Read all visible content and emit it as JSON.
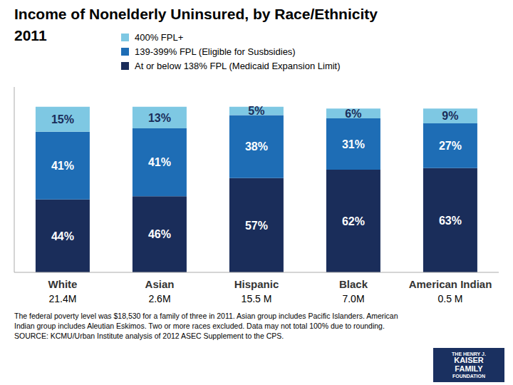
{
  "chart_data": {
    "type": "bar",
    "title": "Income of Nonelderly Uninsured, by Race/Ethnicity\n2011",
    "categories": [
      "White",
      "Asian",
      "Hispanic",
      "Black",
      "American Indian"
    ],
    "series": [
      {
        "name": "At or below 138% FPL (Medicaid Expansion Limit)",
        "color": "#1a2d5a",
        "values": [
          44,
          46,
          57,
          62,
          63
        ],
        "value_labels": [
          "44%",
          "46%",
          "57%",
          "62%",
          "63%"
        ]
      },
      {
        "name": "139-399% FPL (Eligible for Susbsidies)",
        "color": "#1e6db5",
        "values": [
          41,
          41,
          38,
          31,
          27
        ],
        "value_labels": [
          "41%",
          "41%",
          "38%",
          "31%",
          "27%"
        ]
      },
      {
        "name": "400% FPL+",
        "color": "#7ec8e3",
        "values": [
          15,
          13,
          5,
          6,
          9
        ],
        "value_labels": [
          "15%",
          "13%",
          "5%",
          "6%",
          "9%"
        ]
      }
    ],
    "stacked": true,
    "data_labels": true,
    "legend": "top",
    "grid": false,
    "tick_labels": "x",
    "ylim": [
      0,
      112
    ],
    "annotations": [
      {
        "text": "21.4M",
        "category": "White"
      },
      {
        "text": "2.6M",
        "category": "Asian"
      },
      {
        "text": "15.5 M",
        "category": "Hispanic"
      },
      {
        "text": "7.0M",
        "category": "Black"
      },
      {
        "text": "0.5 M",
        "category": "American Indian"
      },
      {
        "text": "The federal poverty level was $18,530 for a family of three  in 2011. Asian group includes Pacific Islanders. American\nIndian group includes Aleutian Eskimos. Two or more races excluded. Data may not total 100% due to rounding.\nSOURCE: KCMU/Urban Institute analysis of 2012 ASEC Supplement to the CPS."
      },
      {
        "text": "THE HENRY J.\nKAISER\nFAMILY\nFOUNDATION"
      }
    ]
  }
}
